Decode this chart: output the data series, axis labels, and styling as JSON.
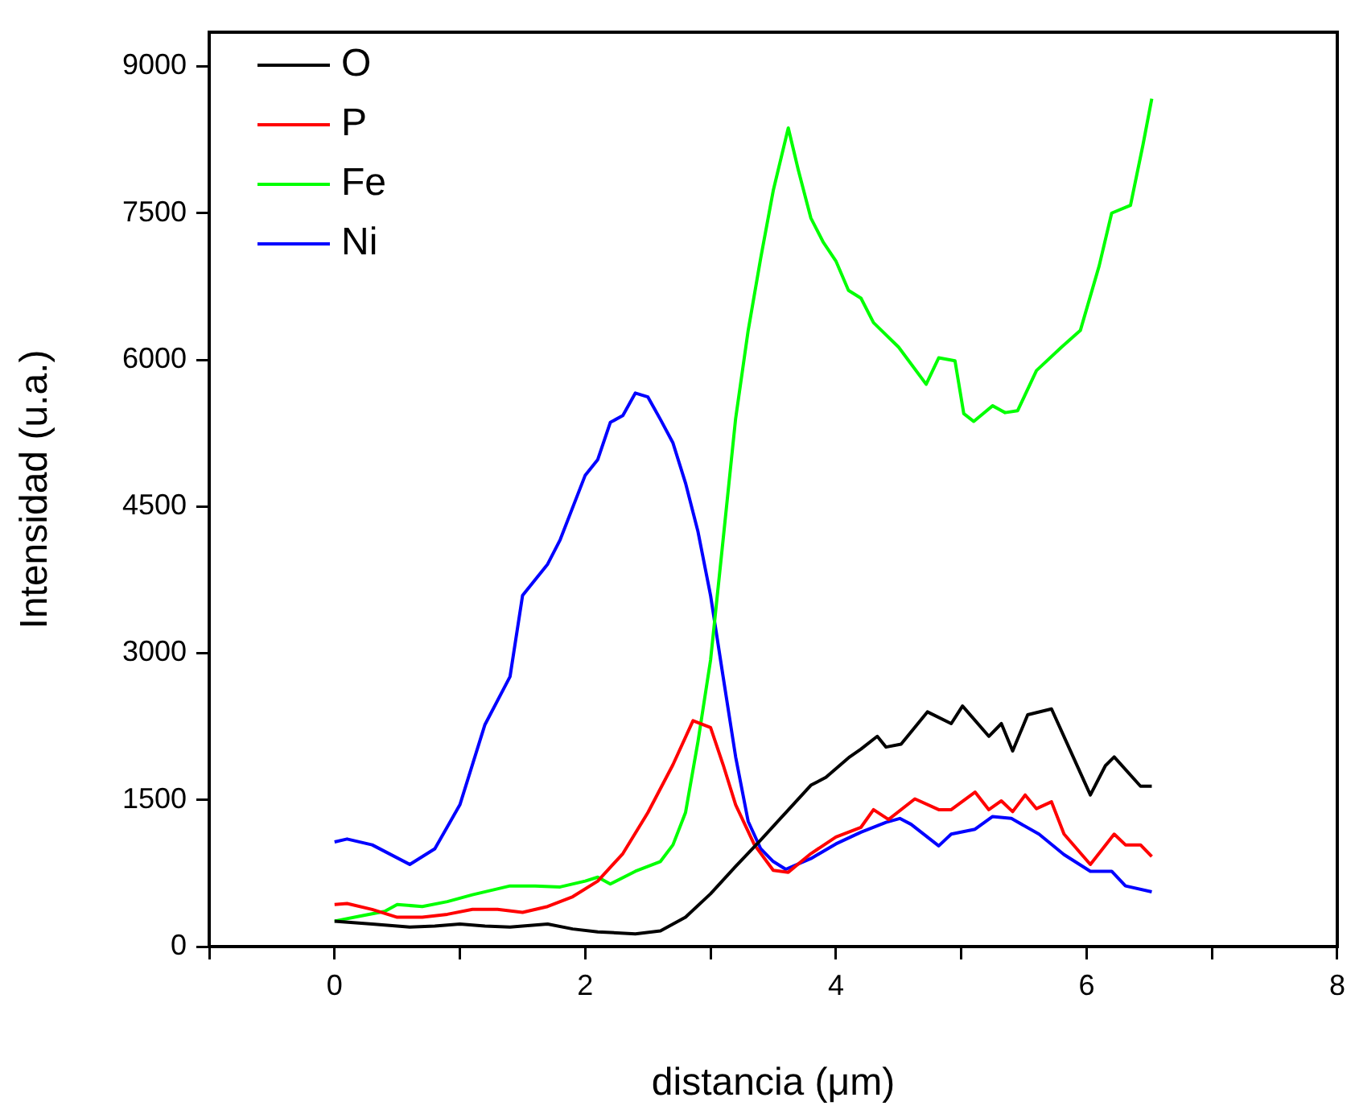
{
  "chart_data": {
    "type": "line",
    "xlabel": "distancia (μm)",
    "ylabel": "Intensidad (u.a.)",
    "xlim": [
      -1,
      8
    ],
    "xticks": [
      {
        "value": -1,
        "label": null
      },
      0,
      {
        "value": 1,
        "label": null
      },
      2,
      {
        "value": 3,
        "label": null
      },
      4,
      {
        "value": 5,
        "label": null
      },
      6,
      {
        "value": 7,
        "label": null
      },
      8
    ],
    "ylim": [
      0,
      9350
    ],
    "yticks": [
      0,
      1500,
      3000,
      4500,
      6000,
      7500,
      9000
    ],
    "legend": "top left",
    "marker": "none",
    "line_style": "solid",
    "series": [
      {
        "name": "O",
        "color": "#000000",
        "x": [
          0,
          0.3,
          0.6,
          0.8,
          1.0,
          1.2,
          1.4,
          1.7,
          1.9,
          2.1,
          2.4,
          2.6,
          2.8,
          3.0,
          3.2,
          3.4,
          3.6,
          3.8,
          3.92,
          4.11,
          4.2,
          4.33,
          4.4,
          4.52,
          4.73,
          4.92,
          5.01,
          5.22,
          5.32,
          5.41,
          5.53,
          5.72,
          5.84,
          6.03,
          6.15,
          6.22,
          6.43,
          6.52
        ],
        "values": [
          260,
          230,
          200,
          210,
          230,
          210,
          200,
          230,
          180,
          150,
          130,
          160,
          300,
          540,
          820,
          1090,
          1370,
          1650,
          1730,
          1940,
          2020,
          2150,
          2040,
          2070,
          2400,
          2280,
          2460,
          2150,
          2280,
          2000,
          2370,
          2430,
          2090,
          1550,
          1850,
          1940,
          1640,
          1640
        ]
      },
      {
        "name": "P",
        "color": "#ff0000",
        "x": [
          0,
          0.1,
          0.3,
          0.5,
          0.7,
          0.9,
          1.1,
          1.3,
          1.5,
          1.7,
          1.9,
          2.1,
          2.3,
          2.5,
          2.7,
          2.86,
          3.0,
          3.1,
          3.2,
          3.35,
          3.5,
          3.62,
          3.8,
          4.0,
          4.2,
          4.3,
          4.42,
          4.63,
          4.82,
          4.92,
          5.11,
          5.22,
          5.32,
          5.41,
          5.51,
          5.6,
          5.72,
          5.82,
          6.03,
          6.22,
          6.31,
          6.43,
          6.52
        ],
        "values": [
          430,
          440,
          380,
          300,
          300,
          330,
          380,
          380,
          350,
          410,
          510,
          670,
          950,
          1370,
          1860,
          2310,
          2240,
          1860,
          1450,
          1040,
          780,
          760,
          950,
          1120,
          1220,
          1400,
          1300,
          1510,
          1400,
          1400,
          1580,
          1400,
          1490,
          1380,
          1550,
          1410,
          1480,
          1150,
          840,
          1150,
          1040,
          1040,
          920
        ]
      },
      {
        "name": "Fe",
        "color": "#00ff00",
        "x": [
          0,
          0.2,
          0.4,
          0.5,
          0.7,
          0.9,
          1.1,
          1.4,
          1.6,
          1.8,
          2.0,
          2.1,
          2.2,
          2.4,
          2.6,
          2.7,
          2.8,
          2.9,
          3.0,
          3.1,
          3.2,
          3.3,
          3.4,
          3.5,
          3.62,
          3.7,
          3.8,
          3.9,
          4.0,
          4.1,
          4.2,
          4.3,
          4.5,
          4.72,
          4.82,
          4.95,
          5.02,
          5.1,
          5.25,
          5.35,
          5.45,
          5.6,
          5.8,
          5.95,
          6.1,
          6.2,
          6.35,
          6.45,
          6.52
        ],
        "values": [
          260,
          310,
          360,
          430,
          410,
          460,
          530,
          620,
          620,
          610,
          670,
          710,
          640,
          770,
          870,
          1040,
          1370,
          2100,
          2930,
          4160,
          5400,
          6300,
          7040,
          7730,
          8370,
          7940,
          7450,
          7200,
          7010,
          6710,
          6630,
          6380,
          6130,
          5750,
          6020,
          5990,
          5450,
          5370,
          5530,
          5460,
          5480,
          5890,
          6130,
          6300,
          6960,
          7500,
          7580,
          8200,
          8670
        ]
      },
      {
        "name": "Ni",
        "color": "#0000ff",
        "x": [
          0,
          0.1,
          0.3,
          0.6,
          0.8,
          1.0,
          1.2,
          1.4,
          1.5,
          1.7,
          1.8,
          2.0,
          2.1,
          2.2,
          2.3,
          2.4,
          2.5,
          2.6,
          2.7,
          2.8,
          2.9,
          3.0,
          3.1,
          3.2,
          3.3,
          3.4,
          3.5,
          3.6,
          3.8,
          4.0,
          4.2,
          4.4,
          4.51,
          4.6,
          4.82,
          4.92,
          5.11,
          5.25,
          5.4,
          5.62,
          5.82,
          6.03,
          6.2,
          6.31,
          6.52
        ],
        "values": [
          1070,
          1100,
          1040,
          840,
          1000,
          1450,
          2270,
          2760,
          3590,
          3910,
          4160,
          4820,
          4980,
          5360,
          5430,
          5660,
          5620,
          5390,
          5150,
          4740,
          4240,
          3590,
          2760,
          1940,
          1280,
          1000,
          870,
          790,
          900,
          1050,
          1170,
          1270,
          1310,
          1250,
          1030,
          1150,
          1200,
          1330,
          1310,
          1150,
          940,
          770,
          770,
          620,
          560
        ]
      }
    ]
  }
}
